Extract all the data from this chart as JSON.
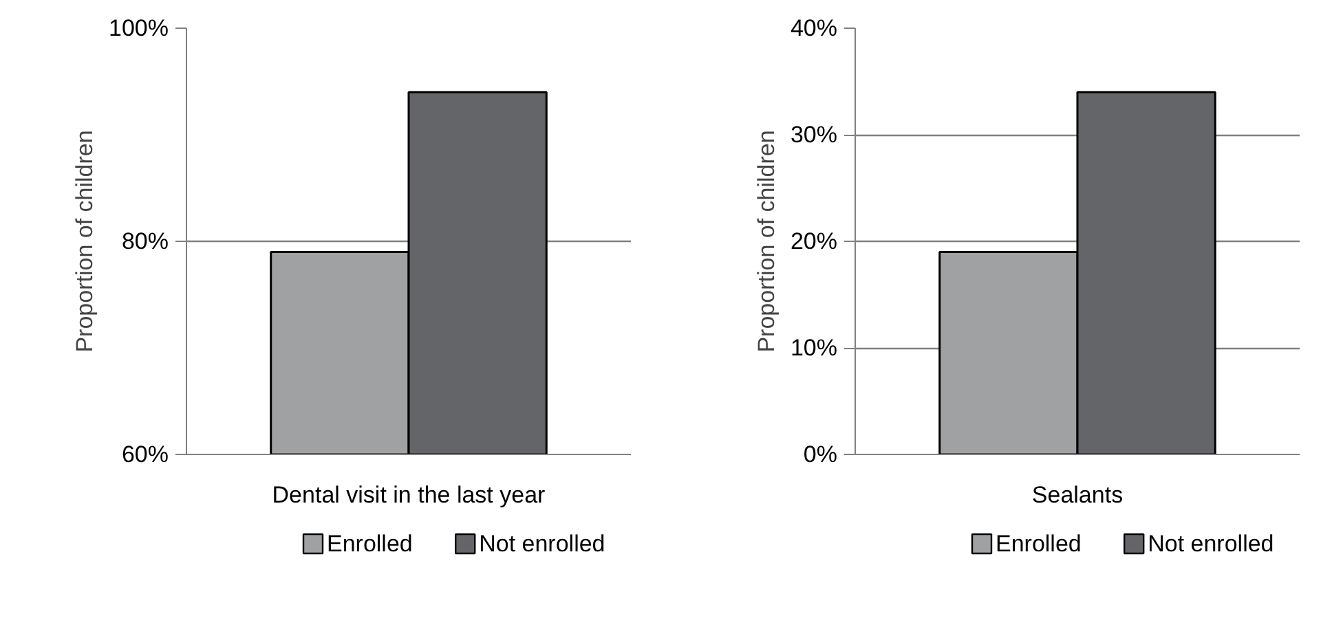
{
  "chart_data": [
    {
      "type": "bar",
      "ylabel": "Proportion of children",
      "categories": [
        "Dental visit in the last year"
      ],
      "series": [
        {
          "name": "Enrolled",
          "color": "#a0a1a3",
          "values": [
            79
          ]
        },
        {
          "name": "Not enrolled",
          "color": "#646568",
          "values": [
            94
          ]
        }
      ],
      "ylim": [
        60,
        100
      ],
      "yticks": [
        {
          "value": 60,
          "label": "60%"
        },
        {
          "value": 80,
          "label": "80%"
        },
        {
          "value": 100,
          "label": "100%"
        }
      ],
      "grid": "y",
      "legend": "bottom"
    },
    {
      "type": "bar",
      "ylabel": "Proportion of children",
      "categories": [
        "Sealants"
      ],
      "series": [
        {
          "name": "Enrolled",
          "color": "#a0a1a3",
          "values": [
            19
          ]
        },
        {
          "name": "Not enrolled",
          "color": "#646568",
          "values": [
            34
          ]
        }
      ],
      "ylim": [
        0,
        40
      ],
      "yticks": [
        {
          "value": 0,
          "label": "0%"
        },
        {
          "value": 10,
          "label": "10%"
        },
        {
          "value": 20,
          "label": "20%"
        },
        {
          "value": 30,
          "label": "30%"
        },
        {
          "value": 40,
          "label": "40%"
        }
      ],
      "grid": "y",
      "legend": "bottom"
    }
  ]
}
